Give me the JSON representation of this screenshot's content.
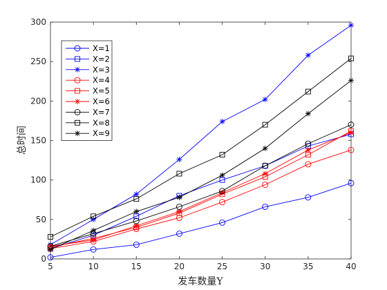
{
  "chart_data": {
    "type": "line",
    "title": "",
    "xlabel": "发车数量Y",
    "ylabel": "总时间",
    "xlim": [
      5,
      40
    ],
    "ylim": [
      0,
      300
    ],
    "x": [
      5,
      10,
      15,
      20,
      25,
      30,
      35,
      40
    ],
    "xticks": [
      "5",
      "10",
      "15",
      "20",
      "25",
      "30",
      "35",
      "40"
    ],
    "yticks": [
      "0",
      "50",
      "100",
      "150",
      "200",
      "250",
      "300"
    ],
    "grid": false,
    "legend_position": "top-left",
    "series": [
      {
        "name": "X=1",
        "color": "#0000ff",
        "marker": "circle",
        "values": [
          2,
          12,
          18,
          32,
          46,
          66,
          78,
          96
        ]
      },
      {
        "name": "X=2",
        "color": "#0000ff",
        "marker": "square",
        "values": [
          13,
          30,
          54,
          80,
          100,
          118,
          143,
          158
        ]
      },
      {
        "name": "X=3",
        "color": "#0000ff",
        "marker": "star",
        "values": [
          18,
          50,
          82,
          126,
          174,
          202,
          258,
          296
        ]
      },
      {
        "name": "X=4",
        "color": "#ff0000",
        "marker": "circle",
        "values": [
          13,
          22,
          38,
          52,
          72,
          94,
          120,
          138
        ]
      },
      {
        "name": "X=5",
        "color": "#ff0000",
        "marker": "square",
        "values": [
          15,
          26,
          40,
          58,
          82,
          104,
          132,
          162
        ]
      },
      {
        "name": "X=6",
        "color": "#ff0000",
        "marker": "star",
        "values": [
          16,
          24,
          42,
          60,
          84,
          108,
          138,
          160
        ]
      },
      {
        "name": "X=7",
        "color": "#000000",
        "marker": "circle",
        "values": [
          16,
          32,
          48,
          66,
          86,
          118,
          146,
          170
        ]
      },
      {
        "name": "X=8",
        "color": "#000000",
        "marker": "square",
        "values": [
          28,
          54,
          76,
          108,
          132,
          170,
          212,
          254
        ]
      },
      {
        "name": "X=9",
        "color": "#000000",
        "marker": "star",
        "values": [
          12,
          36,
          60,
          78,
          106,
          140,
          184,
          226
        ]
      }
    ]
  }
}
